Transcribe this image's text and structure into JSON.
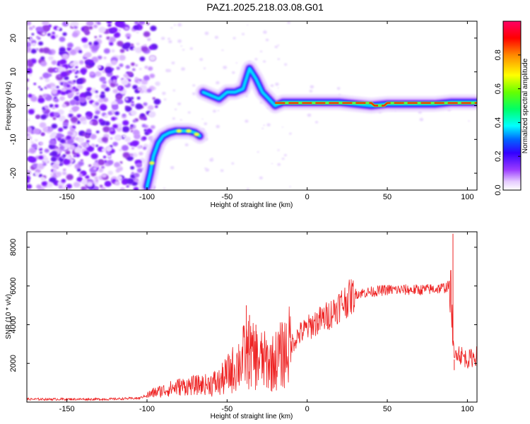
{
  "title": "PAZ1.2025.218.03.08.G01",
  "colors": {
    "snr_line": "#ee2222",
    "colormap": [
      "#ffffff",
      "#d9b3ff",
      "#9b3cff",
      "#5a00ff",
      "#0000ff",
      "#00ffff",
      "#00ff00",
      "#ffff00",
      "#ff0000",
      "#ff0066"
    ]
  },
  "chart_data": [
    {
      "type": "heatmap",
      "title": "PAZ1.2025.218.03.08.G01",
      "xlabel": "Height of straight line (km)",
      "ylabel": "Frequency (Hz)",
      "xlim": [
        -175,
        106
      ],
      "ylim": [
        -25,
        25
      ],
      "xticks": [
        -150,
        -100,
        -50,
        0,
        50,
        100
      ],
      "yticks": [
        -20,
        -10,
        0,
        10,
        20
      ],
      "colorbar": {
        "label": "Normalized spectral amplitude",
        "range": [
          0,
          1
        ],
        "ticks": [
          "0.0",
          "0.2",
          "0.4",
          "0.6",
          "0.8"
        ]
      },
      "ridge": [
        {
          "x": -100,
          "y": -24
        },
        {
          "x": -98,
          "y": -20
        },
        {
          "x": -96,
          "y": -15
        },
        {
          "x": -93,
          "y": -11
        },
        {
          "x": -90,
          "y": -9
        },
        {
          "x": -86,
          "y": -8
        },
        {
          "x": -82,
          "y": -7.5
        },
        {
          "x": -78,
          "y": -7.5
        },
        {
          "x": -74,
          "y": -7.5
        },
        {
          "x": -70,
          "y": -8
        },
        {
          "x": -67,
          "y": -9
        },
        {
          "x": -65,
          "y": 4
        },
        {
          "x": -60,
          "y": 3
        },
        {
          "x": -55,
          "y": 2
        },
        {
          "x": -50,
          "y": 4
        },
        {
          "x": -45,
          "y": 4
        },
        {
          "x": -40,
          "y": 5
        },
        {
          "x": -36,
          "y": 11
        },
        {
          "x": -32,
          "y": 8
        },
        {
          "x": -28,
          "y": 4
        },
        {
          "x": -24,
          "y": 2
        },
        {
          "x": -20,
          "y": 0
        },
        {
          "x": -15,
          "y": 1
        },
        {
          "x": 0,
          "y": 1
        },
        {
          "x": 20,
          "y": 1
        },
        {
          "x": 40,
          "y": 0
        },
        {
          "x": 50,
          "y": 0.5
        },
        {
          "x": 60,
          "y": 0.5
        },
        {
          "x": 80,
          "y": 0.5
        },
        {
          "x": 90,
          "y": 1
        },
        {
          "x": 106,
          "y": 1
        }
      ]
    },
    {
      "type": "line",
      "xlabel": "Height of straight line (km)",
      "ylabel": "SNR (10 * v/v)",
      "xlim": [
        -175,
        106
      ],
      "ylim": [
        0,
        8800
      ],
      "xticks": [
        -150,
        -100,
        -50,
        0,
        50,
        100
      ],
      "yticks": [
        2000,
        4000,
        6000,
        8000
      ],
      "series": [
        {
          "envelope_x": [
            -175,
            -150,
            -125,
            -105,
            -95,
            -80,
            -65,
            -55,
            -45,
            -38,
            -30,
            -22,
            -15,
            -10,
            -5,
            0,
            5,
            10,
            15,
            20,
            25,
            30,
            40,
            50,
            60,
            70,
            80,
            85,
            89,
            90,
            91,
            92,
            93,
            95,
            100,
            106
          ],
          "envelope_y": [
            150,
            150,
            150,
            200,
            500,
            800,
            900,
            1000,
            1800,
            2500,
            2200,
            2000,
            2500,
            3000,
            3500,
            3800,
            4100,
            4300,
            4600,
            5000,
            5300,
            5600,
            5700,
            5800,
            5800,
            5800,
            5850,
            5900,
            6000,
            5500,
            3000,
            2000,
            2800,
            2500,
            2200,
            2400
          ],
          "peaks": [
            {
              "x": -38,
              "y": 5000
            },
            {
              "x": -36,
              "y": 4500
            },
            {
              "x": -32,
              "y": 4000
            },
            {
              "x": 91,
              "y": 8700
            },
            {
              "x": 91.8,
              "y": 1650
            }
          ]
        }
      ]
    }
  ]
}
